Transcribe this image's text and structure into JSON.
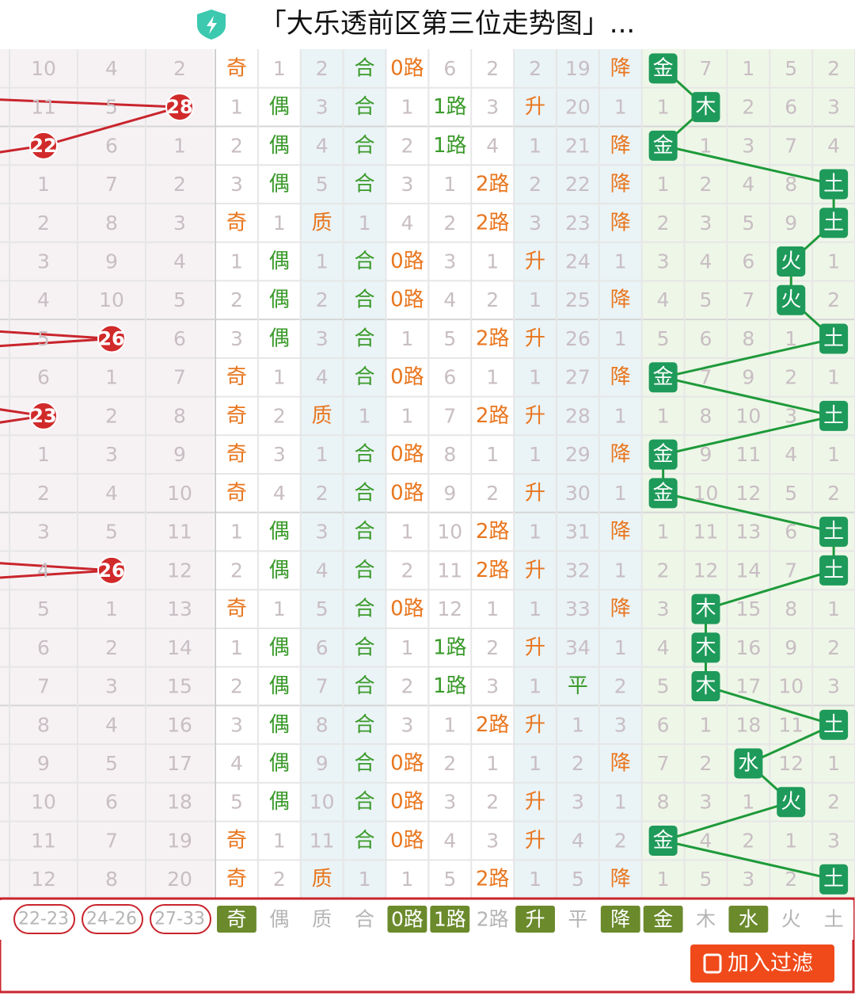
{
  "header": {
    "title": "「大乐透前区第三位走势图」..."
  },
  "rows": [
    [
      10,
      4,
      2,
      "奇",
      1,
      2,
      "合",
      "0路",
      6,
      2,
      2,
      19,
      "降",
      "金",
      7,
      1,
      5,
      2
    ],
    [
      11,
      5,
      28,
      1,
      "偶",
      3,
      "合",
      1,
      "1路",
      3,
      "升",
      20,
      1,
      1,
      "木",
      2,
      6,
      3
    ],
    [
      22,
      6,
      1,
      2,
      "偶",
      4,
      "合",
      2,
      "1路",
      4,
      1,
      21,
      "降",
      "金",
      1,
      3,
      7,
      4
    ],
    [
      1,
      7,
      2,
      3,
      "偶",
      5,
      "合",
      3,
      1,
      "2路",
      2,
      22,
      "降",
      1,
      2,
      4,
      8,
      "土"
    ],
    [
      2,
      8,
      3,
      "奇",
      1,
      "质",
      1,
      4,
      2,
      "2路",
      3,
      23,
      "降",
      2,
      3,
      5,
      9,
      "土"
    ],
    [
      3,
      9,
      4,
      1,
      "偶",
      1,
      "合",
      "0路",
      3,
      1,
      "升",
      24,
      1,
      3,
      4,
      6,
      "火",
      1
    ],
    [
      4,
      10,
      5,
      2,
      "偶",
      2,
      "合",
      "0路",
      4,
      2,
      1,
      25,
      "降",
      4,
      5,
      7,
      "火",
      2
    ],
    [
      5,
      26,
      6,
      3,
      "偶",
      3,
      "合",
      1,
      5,
      "2路",
      "升",
      26,
      1,
      5,
      6,
      8,
      1,
      "土"
    ],
    [
      6,
      1,
      7,
      "奇",
      1,
      4,
      "合",
      "0路",
      6,
      1,
      1,
      27,
      "降",
      "金",
      7,
      9,
      2,
      1
    ],
    [
      23,
      2,
      8,
      "奇",
      2,
      "质",
      1,
      1,
      7,
      "2路",
      "升",
      28,
      1,
      1,
      8,
      10,
      3,
      "土"
    ],
    [
      1,
      3,
      9,
      "奇",
      3,
      1,
      "合",
      "0路",
      8,
      1,
      1,
      29,
      "降",
      "金",
      9,
      11,
      4,
      1
    ],
    [
      2,
      4,
      10,
      "奇",
      4,
      2,
      "合",
      "0路",
      9,
      2,
      "升",
      30,
      1,
      "金",
      10,
      12,
      5,
      2
    ],
    [
      3,
      5,
      11,
      1,
      "偶",
      3,
      "合",
      1,
      10,
      "2路",
      1,
      31,
      "降",
      1,
      11,
      13,
      6,
      "土"
    ],
    [
      4,
      26,
      12,
      2,
      "偶",
      4,
      "合",
      2,
      11,
      "2路",
      "升",
      32,
      1,
      2,
      12,
      14,
      7,
      "土"
    ],
    [
      5,
      1,
      13,
      "奇",
      1,
      5,
      "合",
      "0路",
      12,
      1,
      1,
      33,
      "降",
      3,
      "木",
      15,
      8,
      1
    ],
    [
      6,
      2,
      14,
      1,
      "偶",
      6,
      "合",
      1,
      "1路",
      2,
      "升",
      34,
      1,
      4,
      "木",
      16,
      9,
      2
    ],
    [
      7,
      3,
      15,
      2,
      "偶",
      7,
      "合",
      2,
      "1路",
      3,
      1,
      "平",
      2,
      5,
      "木",
      17,
      10,
      3
    ],
    [
      8,
      4,
      16,
      3,
      "偶",
      8,
      "合",
      3,
      1,
      "2路",
      "升",
      1,
      3,
      6,
      1,
      18,
      11,
      "土"
    ],
    [
      9,
      5,
      17,
      4,
      "偶",
      9,
      "合",
      "0路",
      2,
      1,
      1,
      2,
      "降",
      7,
      2,
      "水",
      12,
      1
    ],
    [
      10,
      6,
      18,
      5,
      "偶",
      10,
      "合",
      "0路",
      3,
      2,
      "升",
      3,
      1,
      8,
      3,
      1,
      "火",
      2
    ],
    [
      11,
      7,
      19,
      "奇",
      1,
      11,
      "合",
      "0路",
      4,
      3,
      "升",
      4,
      2,
      "金",
      4,
      2,
      1,
      3
    ],
    [
      12,
      8,
      20,
      "奇",
      2,
      "质",
      1,
      1,
      5,
      "2路",
      1,
      5,
      "降",
      1,
      5,
      3,
      2,
      "土"
    ]
  ],
  "footer": {
    "items": [
      {
        "label": "22-23",
        "selected": false
      },
      {
        "label": "24-26",
        "selected": false
      },
      {
        "label": "27-33",
        "selected": false
      },
      {
        "label": "奇",
        "selected": true
      },
      {
        "label": "偶",
        "selected": false
      },
      {
        "label": "质",
        "selected": false
      },
      {
        "label": "合",
        "selected": false
      },
      {
        "label": "0路",
        "selected": true
      },
      {
        "label": "1路",
        "selected": true
      },
      {
        "label": "2路",
        "selected": false
      },
      {
        "label": "升",
        "selected": true
      },
      {
        "label": "平",
        "selected": false
      },
      {
        "label": "降",
        "selected": true
      },
      {
        "label": "金",
        "selected": true
      },
      {
        "label": "木",
        "selected": false
      },
      {
        "label": "水",
        "selected": true
      },
      {
        "label": "火",
        "selected": false
      },
      {
        "label": "土",
        "selected": false
      }
    ]
  },
  "button": {
    "label": "加入过滤"
  }
}
